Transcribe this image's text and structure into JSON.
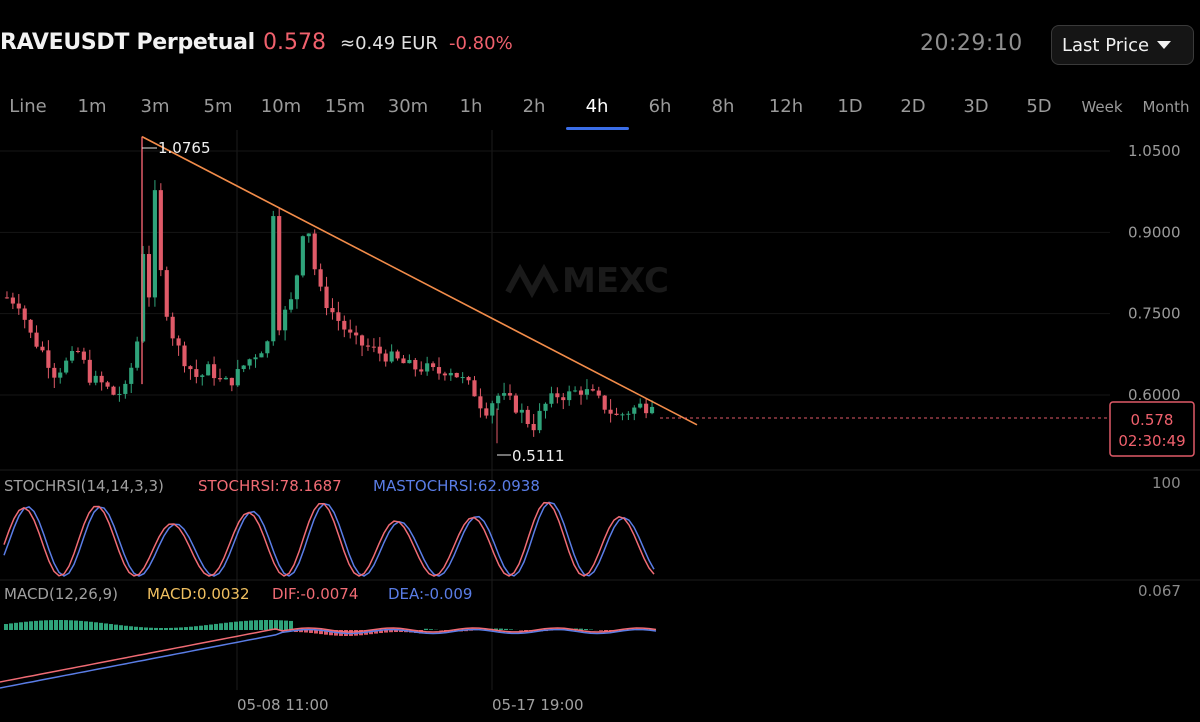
{
  "header": {
    "symbol": "RAVEUSDT Perpetual",
    "last_price": "0.578",
    "eur_price": "≈0.49 EUR",
    "change_pct": "-0.80%",
    "clock": "20:29:10",
    "price_type": "Last Price"
  },
  "timeframes": [
    "Line",
    "1m",
    "3m",
    "5m",
    "10m",
    "15m",
    "30m",
    "1h",
    "2h",
    "4h",
    "6h",
    "8h",
    "12h",
    "1D",
    "2D",
    "3D",
    "5D",
    "Week",
    "Month"
  ],
  "active_timeframe": "4h",
  "watermark": "MEXC",
  "colors": {
    "up": "#2fa37a",
    "down": "#e05a68",
    "trendline": "#f28c4a",
    "active_tab": "#3b6ee8",
    "stoch_k": "#f06b74",
    "stoch_d": "#5a7de6",
    "macd_label": "#f0c060",
    "dif": "#f06b74",
    "dea": "#5a7de6"
  },
  "price_axis": [
    "1.0500",
    "0.9000",
    "0.7500",
    "0.6000"
  ],
  "price_marker": {
    "price": "0.578",
    "countdown": "02:30:49"
  },
  "annotations": {
    "high": "1.0765",
    "low": "0.5111"
  },
  "stochrsi": {
    "label": "STOCHRSI(14,14,3,3)",
    "k": "STOCHRSI:78.1687",
    "d": "MASTOCHRSI:62.0938",
    "axis": "100"
  },
  "macd": {
    "label": "MACD(12,26,9)",
    "macd": "MACD:0.0032",
    "dif": "DIF:-0.0074",
    "dea": "DEA:-0.009",
    "axis": "0.067"
  },
  "time_axis": [
    "05-08 11:00",
    "05-17 19:00"
  ],
  "chart_data": {
    "type": "line",
    "title": "RAVEUSDT Perpetual",
    "timeframe": "4h",
    "y_ticks": [
      1.05,
      0.9,
      0.75,
      0.6
    ],
    "ylim": [
      0.49,
      1.09
    ],
    "x_ticks": [
      "05-08 11:00",
      "05-17 19:00"
    ],
    "last_price": 0.578,
    "high_annotation": 1.0765,
    "low_annotation": 0.5111,
    "price_path": [
      0.78,
      0.77,
      0.71,
      0.68,
      0.64,
      0.66,
      0.68,
      0.63,
      0.62,
      0.6,
      0.61,
      0.71,
      1.0765,
      0.79,
      0.7,
      0.66,
      0.63,
      0.65,
      0.62,
      0.63,
      0.66,
      0.68,
      0.7,
      0.74,
      0.78,
      0.94,
      0.8,
      0.76,
      0.73,
      0.7,
      0.69,
      0.68,
      0.67,
      0.66,
      0.65,
      0.65,
      0.64,
      0.65,
      0.63,
      0.61,
      0.57,
      0.6,
      0.59,
      0.57,
      0.54,
      0.58,
      0.6,
      0.6,
      0.61,
      0.6,
      0.58,
      0.56,
      0.57,
      0.58,
      0.578
    ],
    "trendline": {
      "from": 1.0765,
      "to": 0.545
    },
    "grid": true
  }
}
